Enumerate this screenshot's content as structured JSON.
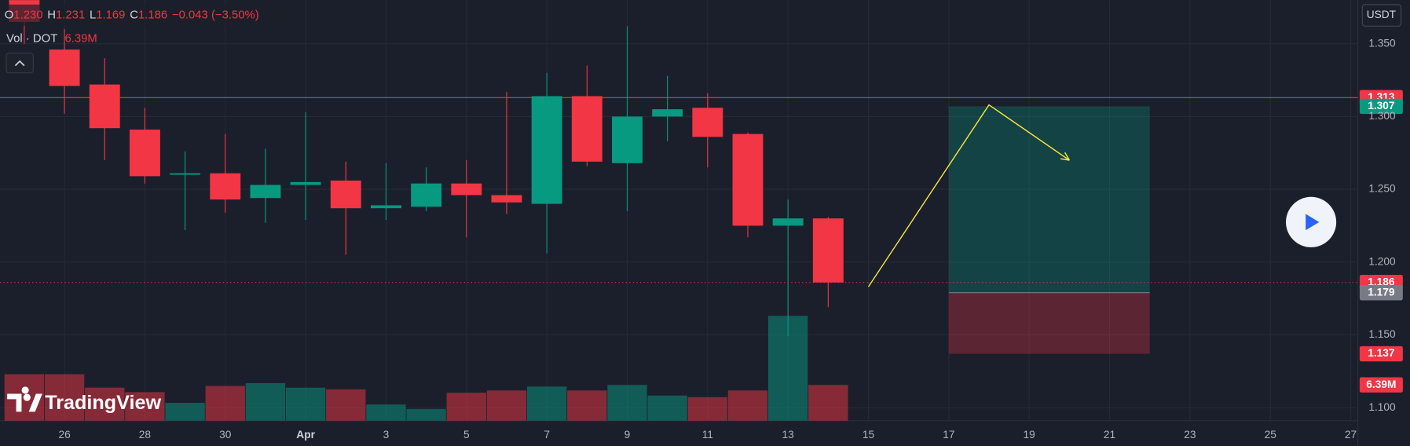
{
  "chart_data": {
    "type": "candlestick",
    "legend": [
      {
        "key": "O",
        "value": "1.230"
      },
      {
        "key": "H",
        "value": "1.231"
      },
      {
        "key": "L",
        "value": "1.169"
      },
      {
        "key": "C",
        "value": "1.186"
      }
    ],
    "change": "−0.043 (−3.50%)",
    "volume_name": "Vol · DOT",
    "quote_currency": "USDT",
    "watermark": "TradingView",
    "categories": [
      null,
      "26",
      null,
      "28",
      null,
      "30",
      null,
      "Apr",
      null,
      "3",
      null,
      "5",
      null,
      "7",
      null,
      "9",
      null,
      "11",
      null,
      "13",
      null,
      "15",
      null,
      "17",
      null,
      "19",
      null,
      "21",
      null,
      "23",
      null,
      "25",
      null,
      "27"
    ],
    "open": [
      1.4,
      1.346,
      1.322,
      1.291,
      1.26,
      1.261,
      1.244,
      1.253,
      1.256,
      1.237,
      1.238,
      1.254,
      1.246,
      1.24,
      1.314,
      1.268,
      1.3,
      1.306,
      1.288,
      1.225,
      1.23,
      null,
      null,
      null,
      null,
      null,
      null,
      null,
      null,
      null,
      null,
      null,
      null,
      null
    ],
    "high": [
      1.41,
      1.36,
      1.34,
      1.306,
      1.276,
      1.288,
      1.278,
      1.303,
      1.269,
      1.268,
      1.265,
      1.27,
      1.317,
      1.33,
      1.335,
      1.362,
      1.328,
      1.316,
      1.289,
      1.243,
      1.231,
      null,
      null,
      null,
      null,
      null,
      null,
      null,
      null,
      null,
      null,
      null,
      null,
      null
    ],
    "low": [
      1.35,
      1.302,
      1.27,
      1.254,
      1.222,
      1.234,
      1.227,
      1.229,
      1.205,
      1.229,
      1.235,
      1.217,
      1.233,
      1.206,
      1.266,
      1.235,
      1.283,
      1.265,
      1.217,
      1.149,
      1.169,
      null,
      null,
      null,
      null,
      null,
      null,
      null,
      null,
      null,
      null,
      null,
      null,
      null
    ],
    "close": [
      1.365,
      1.321,
      1.292,
      1.259,
      1.261,
      1.243,
      1.253,
      1.255,
      1.237,
      1.239,
      1.254,
      1.246,
      1.241,
      1.314,
      1.269,
      1.3,
      1.305,
      1.286,
      1.225,
      1.23,
      1.186,
      null,
      null,
      null,
      null,
      null,
      null,
      null,
      null,
      null,
      null,
      null,
      null,
      null
    ],
    "volume": {
      "values": [
        8.3,
        8.3,
        5.9,
        5.1,
        3.2,
        6.2,
        6.7,
        5.9,
        5.6,
        2.9,
        2.1,
        5.0,
        5.4,
        6.1,
        5.4,
        6.4,
        4.5,
        4.2,
        5.4,
        18.7,
        6.39,
        null,
        null,
        null,
        null,
        null,
        null,
        null,
        null,
        null,
        null,
        null,
        null,
        null
      ],
      "last_label": "6.39M"
    },
    "volume_lim": [
      0,
      75
    ],
    "colors": {
      "up": "#089981",
      "down": "#f23645"
    },
    "ylim": [
      1.091,
      1.38
    ],
    "yticks": [
      {
        "value": 1.1,
        "label": "1.100"
      },
      {
        "value": 1.15,
        "label": "1.150"
      },
      {
        "value": 1.2,
        "label": "1.200"
      },
      {
        "value": 1.25,
        "label": "1.250"
      },
      {
        "value": 1.3,
        "label": "1.300"
      },
      {
        "value": 1.35,
        "label": "1.350"
      }
    ],
    "grid": true,
    "hlines": [
      {
        "value": 1.313,
        "label": "1.313",
        "color": "#f23645",
        "style": "solid"
      },
      {
        "value": 1.186,
        "label": "1.186",
        "color": "#f23645",
        "style": "dotted"
      }
    ],
    "position": {
      "start": 23,
      "end": 28,
      "target": {
        "value": 1.307,
        "label": "1.307"
      },
      "entry": {
        "value": 1.179,
        "label": "1.179"
      },
      "stop": {
        "value": 1.137,
        "label": "1.137"
      }
    },
    "drawing": {
      "x": [
        21,
        24,
        26
      ],
      "y": [
        1.183,
        1.308,
        1.27
      ],
      "color": "#ffeb3b"
    }
  }
}
